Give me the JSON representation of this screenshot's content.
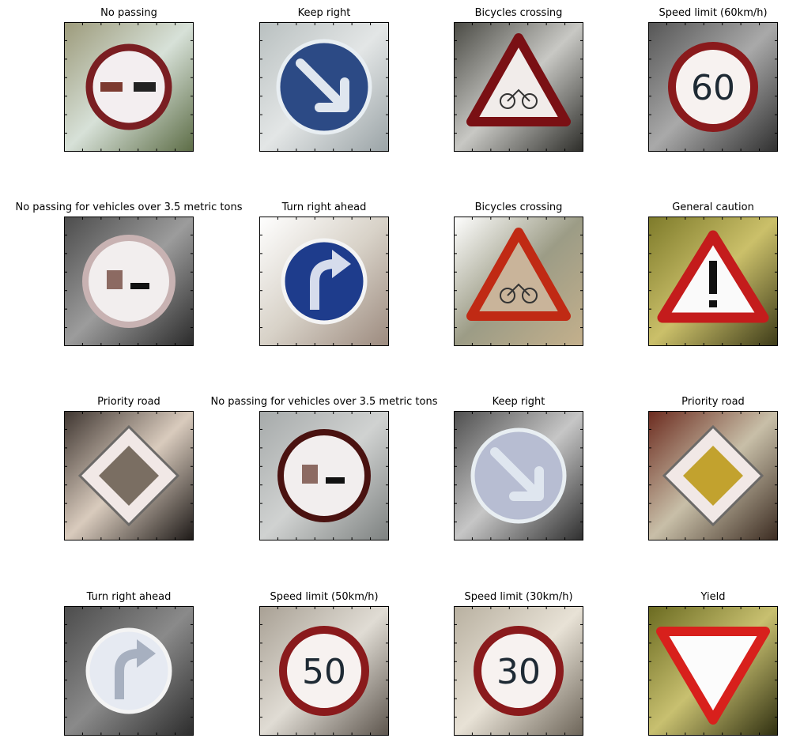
{
  "figure": {
    "panels": [
      {
        "title": "No passing",
        "sign": "no-passing"
      },
      {
        "title": "Keep right",
        "sign": "keep-right"
      },
      {
        "title": "Bicycles crossing",
        "sign": "bicycles-crossing"
      },
      {
        "title": "Speed limit (60km/h)",
        "sign": "speed-limit",
        "number": "60"
      },
      {
        "title": "No passing for vehicles over 3.5 metric tons",
        "sign": "no-passing-trucks"
      },
      {
        "title": "Turn right ahead",
        "sign": "turn-right-ahead"
      },
      {
        "title": "Bicycles crossing",
        "sign": "bicycles-crossing"
      },
      {
        "title": "General caution",
        "sign": "general-caution"
      },
      {
        "title": "Priority road",
        "sign": "priority-road"
      },
      {
        "title": "No passing for vehicles over 3.5 metric tons",
        "sign": "no-passing-trucks"
      },
      {
        "title": "Keep right",
        "sign": "keep-right"
      },
      {
        "title": "Priority road",
        "sign": "priority-road"
      },
      {
        "title": "Turn right ahead",
        "sign": "turn-right-ahead"
      },
      {
        "title": "Speed limit (50km/h)",
        "sign": "speed-limit",
        "number": "50"
      },
      {
        "title": "Speed limit (30km/h)",
        "sign": "speed-limit",
        "number": "30"
      },
      {
        "title": "Yield",
        "sign": "yield"
      }
    ]
  }
}
